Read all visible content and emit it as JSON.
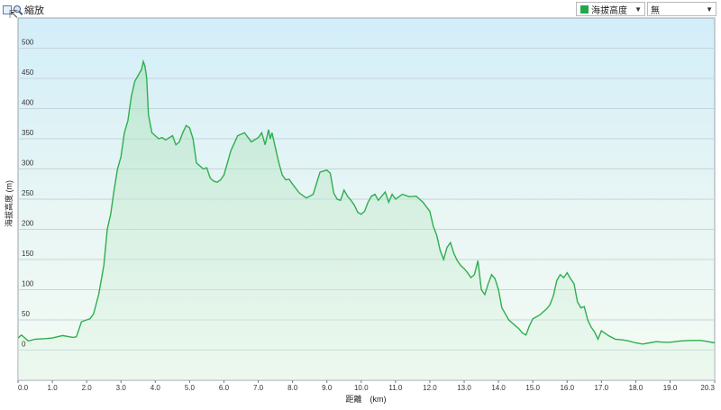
{
  "toolbar": {
    "zoom_label": "縮放",
    "series_select": "海拔高度",
    "secondary_select": "無",
    "colors": {
      "series": "#2fae4e",
      "swatch": "#22a84a"
    }
  },
  "chart_data": {
    "type": "area",
    "title": "",
    "xlabel": "距離　(km)",
    "ylabel": "海拔高度 (m)",
    "xlim": [
      0,
      20.3
    ],
    "ylim": [
      -50,
      550
    ],
    "x_ticks": [
      "0.0",
      "1.0",
      "2.0",
      "3.0",
      "4.0",
      "5.0",
      "6.0",
      "7.0",
      "8.0",
      "9.0",
      "10.0",
      "11.0",
      "12.0",
      "13.0",
      "14.0",
      "15.0",
      "16.0",
      "17.0",
      "18.0",
      "19.0",
      "20.3"
    ],
    "y_ticks": [
      "0",
      "50",
      "100",
      "150",
      "200",
      "250",
      "300",
      "350",
      "400",
      "450",
      "500"
    ],
    "grid": true,
    "series": [
      {
        "x": [
          0,
          0.1,
          0.3,
          0.5,
          0.8,
          1.0,
          1.3,
          1.6,
          1.7,
          1.75,
          1.85,
          2.0,
          2.1,
          2.2,
          2.35,
          2.5,
          2.6,
          2.7,
          2.8,
          2.9,
          3.0,
          3.1,
          3.2,
          3.3,
          3.4,
          3.5,
          3.6,
          3.65,
          3.7,
          3.75,
          3.8,
          3.9,
          4.0,
          4.1,
          4.2,
          4.3,
          4.5,
          4.6,
          4.7,
          4.8,
          4.9,
          5.0,
          5.1,
          5.2,
          5.3,
          5.4,
          5.5,
          5.6,
          5.7,
          5.8,
          5.9,
          6.0,
          6.2,
          6.4,
          6.6,
          6.8,
          7.0,
          7.1,
          7.2,
          7.3,
          7.35,
          7.4,
          7.5,
          7.6,
          7.7,
          7.8,
          7.9,
          8.0,
          8.2,
          8.4,
          8.6,
          8.8,
          9.0,
          9.1,
          9.2,
          9.3,
          9.4,
          9.5,
          9.6,
          9.7,
          9.8,
          9.9,
          10.0,
          10.1,
          10.2,
          10.3,
          10.4,
          10.5,
          10.6,
          10.7,
          10.8,
          10.9,
          11.0,
          11.2,
          11.4,
          11.6,
          11.8,
          12.0,
          12.1,
          12.2,
          12.3,
          12.4,
          12.5,
          12.6,
          12.7,
          12.8,
          12.9,
          13.0,
          13.1,
          13.2,
          13.3,
          13.4,
          13.5,
          13.6,
          13.7,
          13.8,
          13.9,
          14.0,
          14.1,
          14.2,
          14.3,
          14.4,
          14.5,
          14.6,
          14.7,
          14.8,
          14.9,
          15.0,
          15.2,
          15.4,
          15.5,
          15.6,
          15.7,
          15.8,
          15.9,
          16.0,
          16.1,
          16.2,
          16.3,
          16.4,
          16.5,
          16.6,
          16.7,
          16.8,
          16.9,
          17.0,
          17.2,
          17.4,
          17.6,
          17.8,
          18.0,
          18.2,
          18.4,
          18.6,
          18.8,
          19.0,
          19.3,
          19.6,
          19.9,
          20.1,
          20.3
        ],
        "y": [
          20,
          25,
          15,
          18,
          19,
          20,
          24,
          21,
          22,
          30,
          47,
          50,
          52,
          60,
          92,
          140,
          200,
          225,
          265,
          300,
          320,
          360,
          380,
          420,
          445,
          455,
          465,
          478,
          470,
          450,
          390,
          360,
          355,
          350,
          352,
          348,
          355,
          340,
          345,
          360,
          372,
          368,
          350,
          310,
          305,
          300,
          302,
          285,
          280,
          278,
          282,
          290,
          330,
          355,
          360,
          345,
          352,
          360,
          340,
          365,
          350,
          360,
          335,
          310,
          290,
          282,
          283,
          275,
          260,
          252,
          258,
          295,
          298,
          293,
          260,
          250,
          248,
          265,
          255,
          248,
          240,
          228,
          225,
          230,
          245,
          255,
          258,
          248,
          255,
          262,
          245,
          258,
          250,
          258,
          254,
          255,
          245,
          230,
          205,
          190,
          165,
          150,
          170,
          178,
          160,
          148,
          140,
          135,
          128,
          120,
          125,
          148,
          100,
          92,
          110,
          125,
          118,
          100,
          70,
          60,
          50,
          45,
          40,
          35,
          28,
          25,
          40,
          52,
          58,
          68,
          75,
          90,
          115,
          125,
          120,
          128,
          118,
          110,
          80,
          70,
          72,
          50,
          38,
          30,
          18,
          32,
          24,
          18,
          17,
          15,
          12,
          10,
          12,
          14,
          13,
          13,
          15,
          16,
          16,
          14,
          12
        ]
      }
    ]
  }
}
